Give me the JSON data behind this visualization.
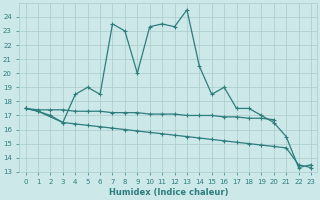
{
  "xlabel": "Humidex (Indice chaleur)",
  "color": "#2e7d7d",
  "bg_color": "#cce8e8",
  "grid_color": "#aacccc",
  "ylim": [
    13,
    25
  ],
  "xlim": [
    -0.5,
    23.5
  ],
  "yticks": [
    13,
    14,
    15,
    16,
    17,
    18,
    19,
    20,
    21,
    22,
    23,
    24
  ],
  "xticks": [
    0,
    1,
    2,
    3,
    4,
    5,
    6,
    7,
    8,
    9,
    10,
    11,
    12,
    13,
    14,
    15,
    16,
    17,
    18,
    19,
    20,
    21,
    22,
    23
  ],
  "main_x": [
    0,
    1,
    3,
    4,
    5,
    6,
    7,
    8,
    9,
    10,
    11,
    12,
    13,
    14,
    15,
    16,
    17,
    18,
    19,
    20,
    21,
    22,
    23
  ],
  "main_y": [
    17.5,
    17.3,
    16.5,
    18.5,
    19.0,
    18.5,
    23.5,
    23.0,
    20.0,
    23.3,
    23.5,
    23.3,
    24.5,
    20.5,
    18.5,
    19.0,
    17.5,
    17.5,
    17.0,
    16.5,
    15.5,
    13.3,
    13.5
  ],
  "upper_x": [
    0,
    1,
    2,
    3,
    4,
    5,
    6,
    7,
    8,
    9,
    10,
    11,
    12,
    13,
    14,
    15,
    16,
    17,
    18,
    19,
    20
  ],
  "upper_y": [
    17.5,
    17.4,
    17.4,
    17.4,
    17.3,
    17.3,
    17.3,
    17.2,
    17.2,
    17.2,
    17.1,
    17.1,
    17.1,
    17.0,
    17.0,
    17.0,
    16.9,
    16.9,
    16.8,
    16.8,
    16.7
  ],
  "lower_x": [
    0,
    1,
    2,
    3,
    4,
    5,
    6,
    7,
    8,
    9,
    10,
    11,
    12,
    13,
    14,
    15,
    16,
    17,
    18,
    19,
    20,
    21,
    22,
    23
  ],
  "lower_y": [
    17.5,
    17.3,
    17.0,
    16.5,
    16.4,
    16.3,
    16.2,
    16.1,
    16.0,
    15.9,
    15.8,
    15.7,
    15.6,
    15.5,
    15.4,
    15.3,
    15.2,
    15.1,
    15.0,
    14.9,
    14.8,
    14.7,
    13.5,
    13.3
  ]
}
